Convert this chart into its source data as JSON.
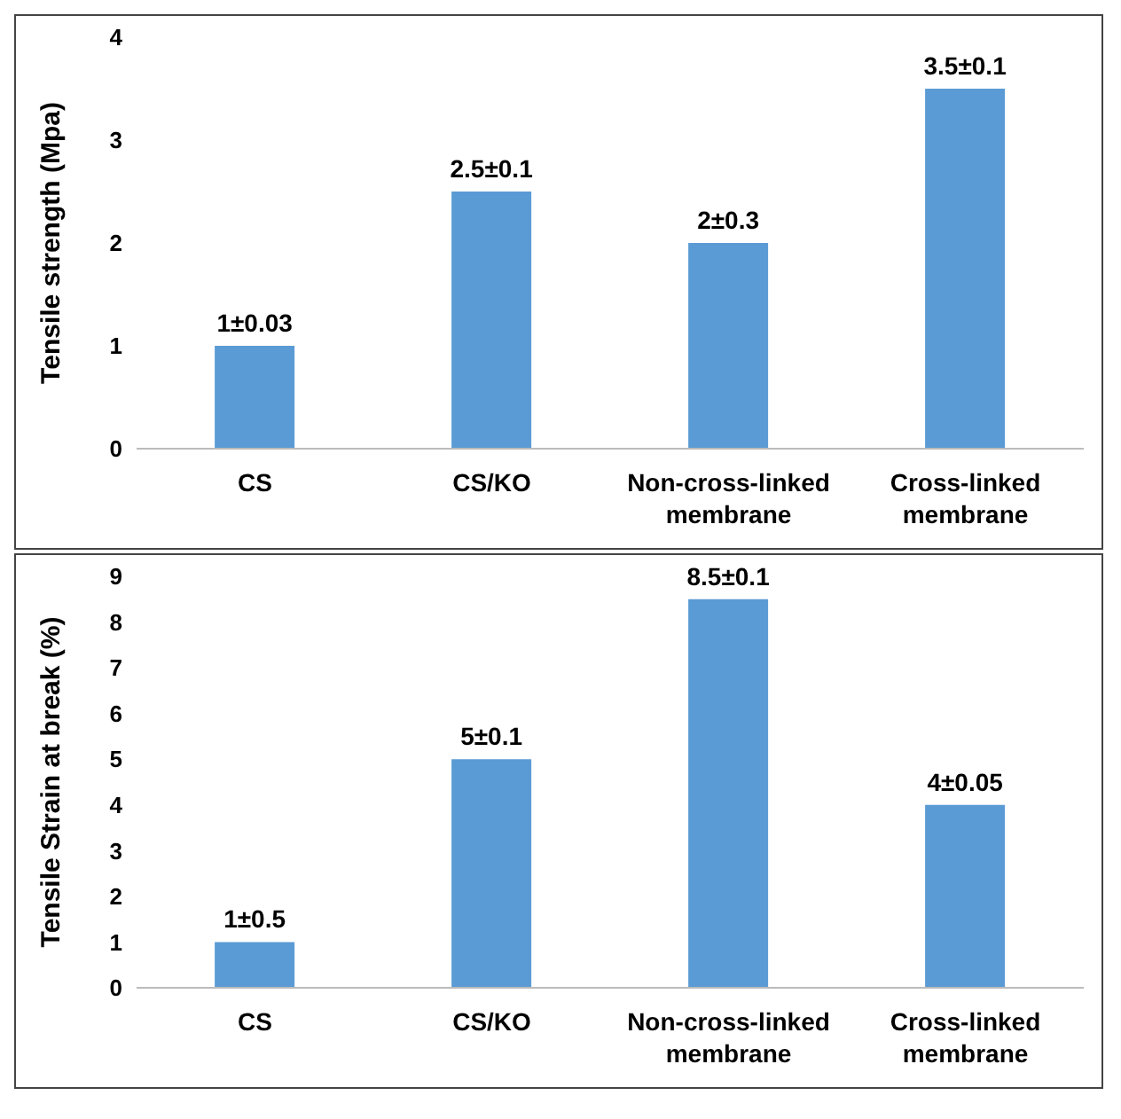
{
  "chart_data": [
    {
      "type": "bar",
      "ylabel": "Tensile strength (Mpa)",
      "categories": [
        "CS",
        "CS/KO",
        "Non-cross-linked membrane",
        "Cross-linked membrane"
      ],
      "values": [
        1,
        2.5,
        2,
        3.5
      ],
      "color": "#5b9bd5",
      "ylim": [
        0,
        4
      ],
      "yticks": [
        0,
        1,
        2,
        3,
        4
      ],
      "grid": false,
      "value_labels": [
        "1±0.03",
        "2.5±0.1",
        "2±0.3",
        "3.5±0.1"
      ]
    },
    {
      "type": "bar",
      "ylabel": "Tensile Strain at break (%)",
      "categories": [
        "CS",
        "CS/KO",
        "Non-cross-linked membrane",
        "Cross-linked membrane"
      ],
      "values": [
        1,
        5,
        8.5,
        4
      ],
      "color": "#5b9bd5",
      "ylim": [
        0,
        9
      ],
      "yticks": [
        0,
        1,
        2,
        3,
        4,
        5,
        6,
        7,
        8,
        9
      ],
      "grid": false,
      "value_labels": [
        "1±0.5",
        "5±0.1",
        "8.5±0.1",
        "4±0.05"
      ]
    }
  ]
}
